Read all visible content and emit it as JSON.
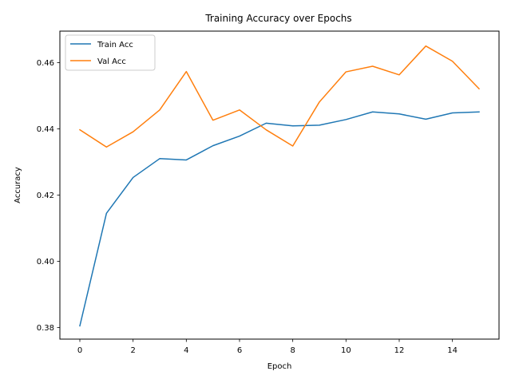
{
  "chart_data": {
    "type": "line",
    "title": "Training Accuracy over Epochs",
    "xlabel": "Epoch",
    "ylabel": "Accuracy",
    "x": [
      0,
      1,
      2,
      3,
      4,
      5,
      6,
      7,
      8,
      9,
      10,
      11,
      12,
      13,
      14,
      15
    ],
    "xlim": [
      -0.75,
      15.75
    ],
    "ylim": [
      0.3765,
      0.4695
    ],
    "xticks": [
      0,
      2,
      4,
      6,
      8,
      10,
      12,
      14
    ],
    "yticks": [
      0.38,
      0.4,
      0.42,
      0.44,
      0.46
    ],
    "xtick_labels": [
      "0",
      "2",
      "4",
      "6",
      "8",
      "10",
      "12",
      "14"
    ],
    "ytick_labels": [
      "0.38",
      "0.40",
      "0.42",
      "0.44",
      "0.46"
    ],
    "grid": false,
    "legend_position": "upper-left",
    "series": [
      {
        "name": "Train Acc",
        "color": "#1f77b4",
        "values": [
          0.3805,
          0.4145,
          0.4253,
          0.431,
          0.4306,
          0.4349,
          0.4378,
          0.4417,
          0.4409,
          0.4411,
          0.4428,
          0.4451,
          0.4445,
          0.4429,
          0.4448,
          0.4451
        ]
      },
      {
        "name": "Val Acc",
        "color": "#ff7f0e",
        "values": [
          0.4397,
          0.4345,
          0.4391,
          0.4457,
          0.4573,
          0.4426,
          0.4457,
          0.4397,
          0.4348,
          0.4481,
          0.4572,
          0.4589,
          0.4563,
          0.465,
          0.4604,
          0.4521
        ]
      }
    ]
  }
}
